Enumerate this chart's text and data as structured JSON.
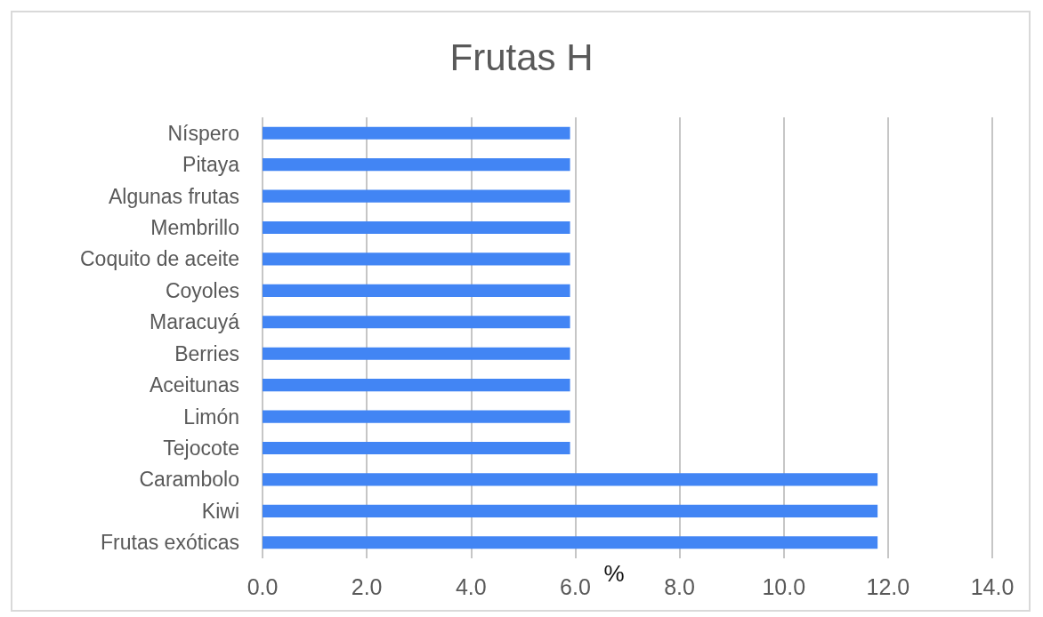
{
  "chart_data": {
    "type": "bar",
    "orientation": "horizontal",
    "title": "Frutas H",
    "xlabel": "%",
    "categories": [
      "Níspero",
      "Pitaya",
      "Algunas frutas",
      "Membrillo",
      "Coquito de aceite",
      "Coyoles",
      "Maracuyá",
      "Berries",
      "Aceitunas",
      "Limón",
      "Tejocote",
      "Carambolo",
      "Kiwi",
      "Frutas exóticas"
    ],
    "values": [
      5.9,
      5.9,
      5.9,
      5.9,
      5.9,
      5.9,
      5.9,
      5.9,
      5.9,
      5.9,
      5.9,
      11.8,
      11.8,
      11.8
    ],
    "color": "#4285f4",
    "xlim": [
      0,
      14
    ],
    "xticks": [
      {
        "value": 0,
        "label": "0.0"
      },
      {
        "value": 2,
        "label": "2.0"
      },
      {
        "value": 4,
        "label": "4.0"
      },
      {
        "value": 6,
        "label": "6.0"
      },
      {
        "value": 8,
        "label": "8.0"
      },
      {
        "value": 10,
        "label": "10.0"
      },
      {
        "value": 12,
        "label": "12.0"
      },
      {
        "value": 14,
        "label": "14.0"
      }
    ],
    "grid": "x"
  }
}
